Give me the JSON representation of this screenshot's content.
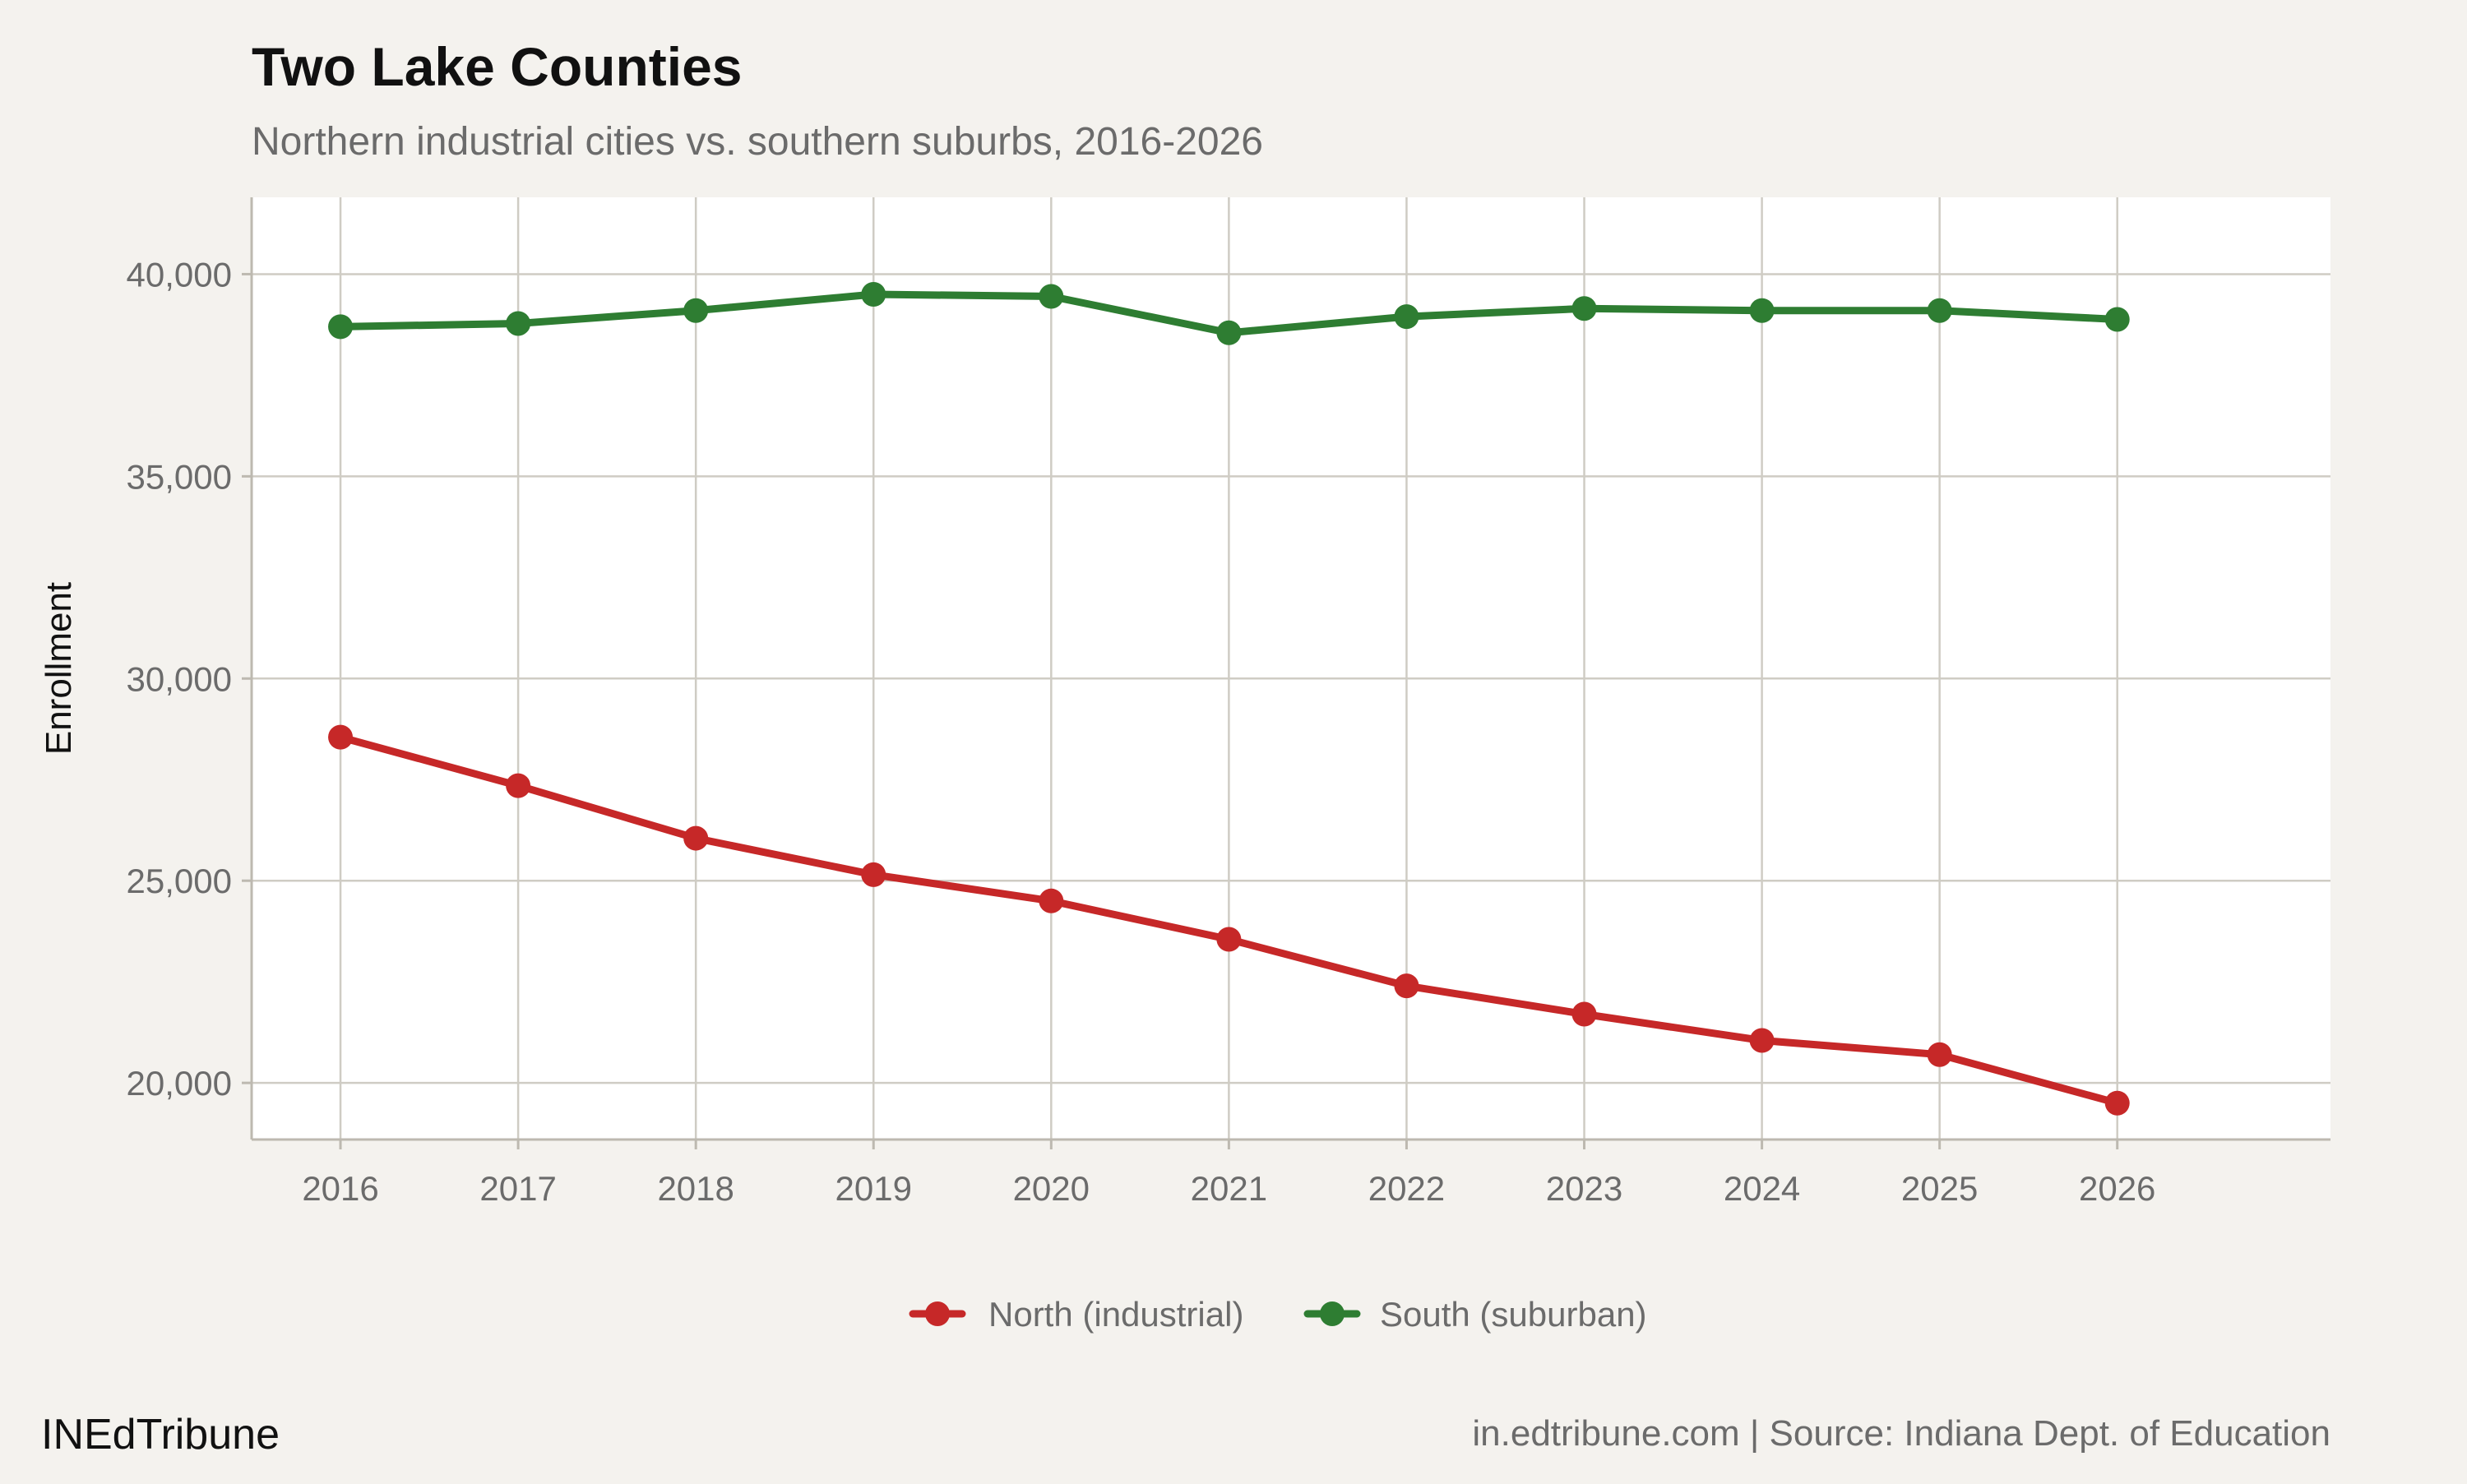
{
  "chart_data": {
    "type": "line",
    "title": "Two Lake Counties",
    "subtitle": "Northern industrial cities vs. southern suburbs, 2016-2026",
    "xlabel": "",
    "ylabel": "Enrollment",
    "x": [
      2016,
      2017,
      2018,
      2019,
      2020,
      2021,
      2022,
      2023,
      2024,
      2025,
      2026
    ],
    "xlim": [
      2015.5,
      2027.2
    ],
    "ylim": [
      18600,
      41900
    ],
    "yticks": [
      20000,
      25000,
      30000,
      35000,
      40000
    ],
    "ytick_labels": [
      "20,000",
      "25,000",
      "30,000",
      "35,000",
      "40,000"
    ],
    "xtick_labels": [
      "2016",
      "2017",
      "2018",
      "2019",
      "2020",
      "2021",
      "2022",
      "2023",
      "2024",
      "2025",
      "2026"
    ],
    "grid": true,
    "legend_position": "bottom",
    "series": [
      {
        "name": "North (industrial)",
        "color": "#c62828",
        "values": [
          28550,
          27350,
          26050,
          25150,
          24500,
          23550,
          22400,
          21700,
          21050,
          20700,
          19500
        ]
      },
      {
        "name": "South (suburban)",
        "color": "#2e7d32",
        "values": [
          38700,
          38780,
          39100,
          39500,
          39450,
          38550,
          38950,
          39150,
          39100,
          39100,
          38880
        ]
      }
    ]
  },
  "footer": {
    "brand": "INEdTribune",
    "source": "in.edtribune.com | Source: Indiana Dept. of Education"
  },
  "colors": {
    "background": "#f4f2ee",
    "panel": "#ffffff",
    "grid": "#cfccc4",
    "title": "#111111",
    "subtitle": "#6b6b6b",
    "tick": "#6b6b6b"
  }
}
